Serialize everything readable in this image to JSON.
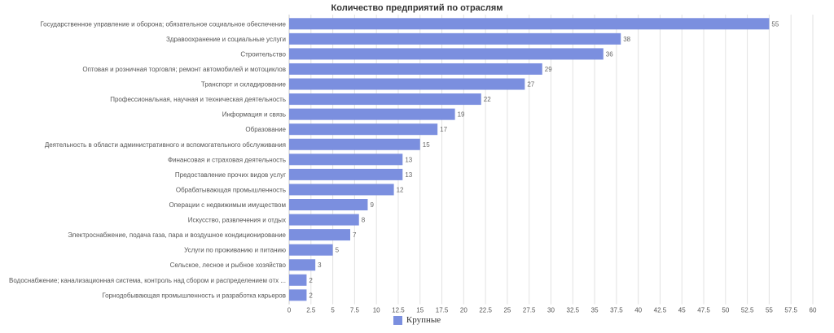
{
  "chart_data": {
    "type": "bar",
    "orientation": "horizontal",
    "title": "Количество предприятий по отраслям",
    "xlabel": "",
    "ylabel": "",
    "xlim": [
      0,
      60
    ],
    "x_ticks": [
      0,
      2.5,
      5,
      7.5,
      10,
      12.5,
      15,
      17.5,
      20,
      22.5,
      25,
      27.5,
      30,
      32.5,
      35,
      37.5,
      40,
      42.5,
      45,
      47.5,
      50,
      52.5,
      55,
      57.5,
      60
    ],
    "x_tick_labels": [
      "0",
      "2.5",
      "5",
      "7.5",
      "10",
      "12.5",
      "15",
      "17.5",
      "20",
      "22.5",
      "25",
      "27.5",
      "30",
      "32.5",
      "35",
      "37.5",
      "40",
      "42.5",
      "45",
      "47.5",
      "50",
      "52.5",
      "55",
      "57.5",
      "60"
    ],
    "grid": true,
    "legend_position": "bottom-center",
    "bar_color": "#7b8fdf",
    "categories": [
      "Государственное управление и оборона; обязательное социальное обеспечение",
      "Здравоохранение и социальные услуги",
      "Строительство",
      "Оптовая и розничная торговля; ремонт автомобилей и мотоциклов",
      "Транспорт и складирование",
      "Профессиональная, научная и техническая деятельность",
      "Информация и связь",
      "Образование",
      "Деятельность в области административного и вспомогательного обслуживания",
      "Финансовая и страховая деятельность",
      "Предоставление прочих видов услуг",
      "Обрабатывающая промышленность",
      "Операции с недвижимым имуществом",
      "Искусство, развлечения и отдых",
      "Электроснабжение, подача газа, пара и воздушное кондиционирование",
      "Услуги по проживанию и питанию",
      "Сельское, лесное и рыбное хозяйство",
      "Водоснабжение; канализационная система, контроль над сбором и распределением отх ...",
      "Горнодобывающая промышленность и разработка карьеров"
    ],
    "series": [
      {
        "name": "Крупные",
        "color": "#7b8fdf",
        "values": [
          55,
          38,
          36,
          29,
          27,
          22,
          19,
          17,
          15,
          13,
          13,
          12,
          9,
          8,
          7,
          5,
          3,
          2,
          2
        ]
      }
    ]
  }
}
